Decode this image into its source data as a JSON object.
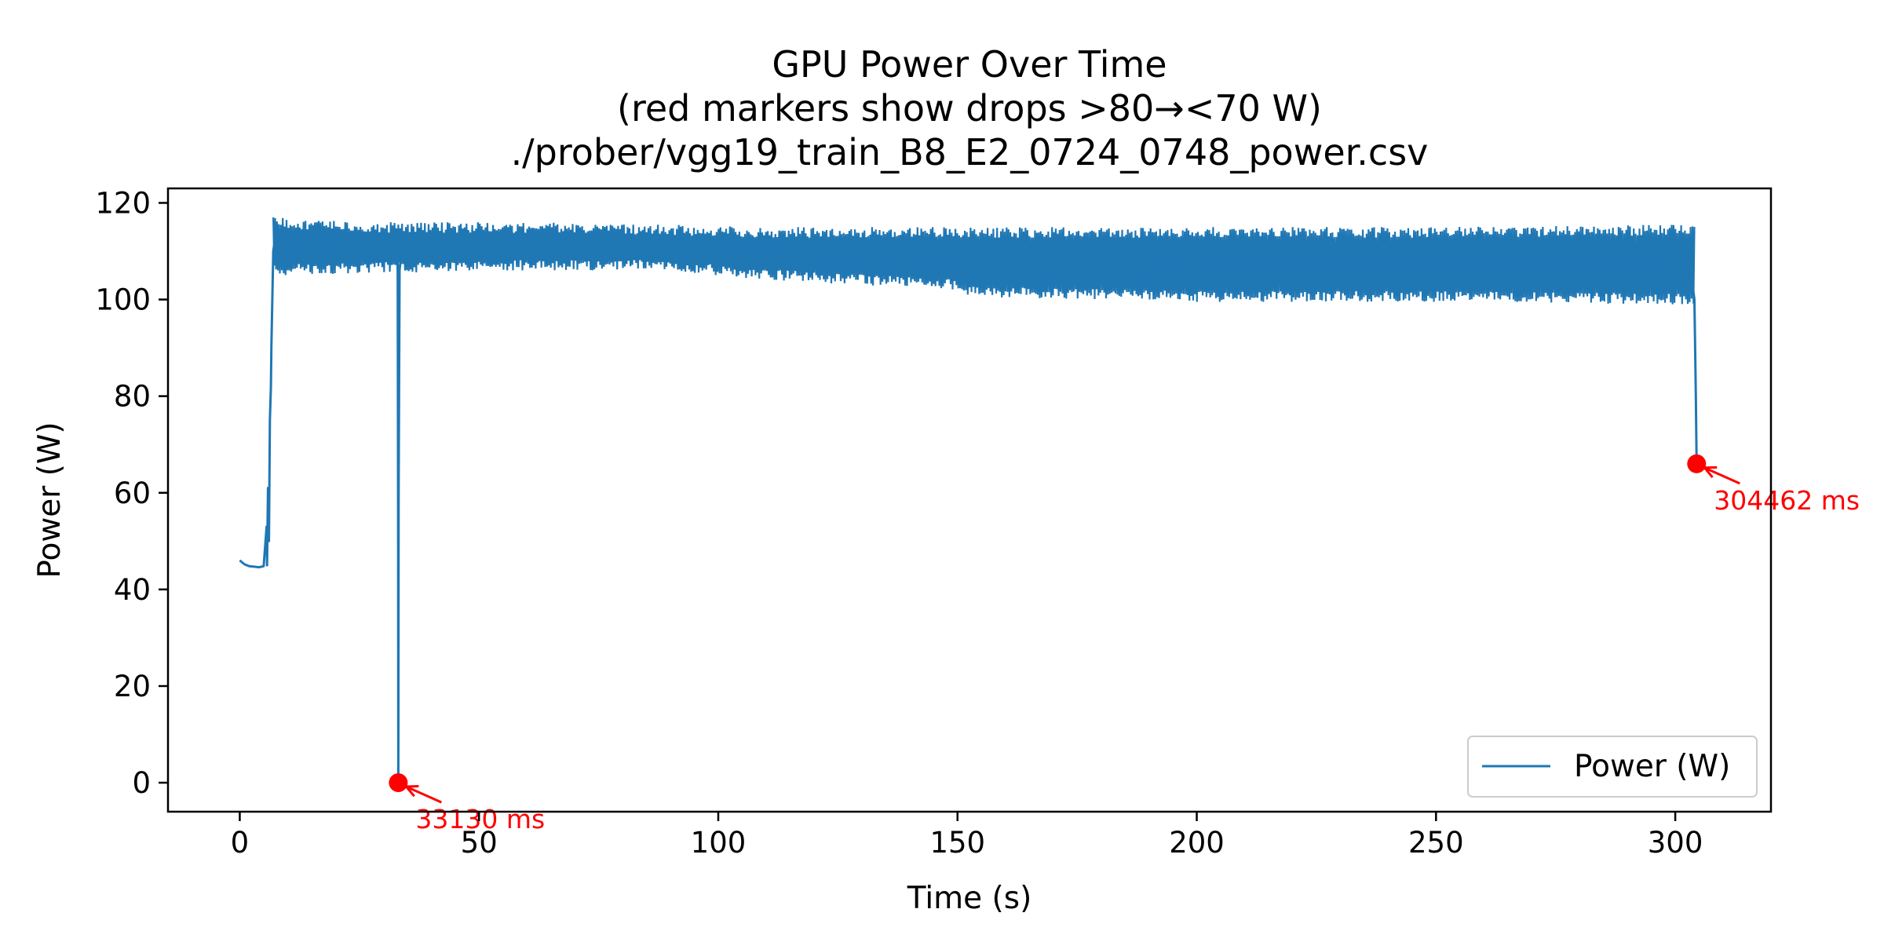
{
  "chart_data": {
    "type": "line",
    "title_lines": [
      "GPU Power Over Time",
      "(red markers show drops >80→<70 W)",
      "./prober/vgg19_train_B8_E2_0724_0748_power.csv"
    ],
    "xlabel": "Time (s)",
    "ylabel": "Power (W)",
    "xlim": [
      -15,
      320
    ],
    "ylim": [
      -6,
      123
    ],
    "xticks": [
      0,
      50,
      100,
      150,
      200,
      250,
      300
    ],
    "yticks": [
      0,
      20,
      40,
      60,
      80,
      100,
      120
    ],
    "grid": false,
    "legend_position": "lower-right",
    "series": [
      {
        "name": "Power (W)",
        "color": "#1f77b4",
        "x": [
          0,
          1,
          2,
          3,
          4,
          5,
          5.6,
          5.7,
          5.9,
          6.1,
          6.3,
          6.5,
          6.6,
          6.8,
          7.0,
          7.3,
          7.6,
          8.0,
          33.0,
          33.1,
          33.13,
          33.2,
          33.4,
          33.8,
          100,
          150,
          152,
          155,
          200,
          250,
          300,
          303.5,
          304.0,
          304.3,
          304.462
        ],
        "y": [
          46,
          45.2,
          44.8,
          44.7,
          44.6,
          44.8,
          53,
          45,
          61,
          50,
          75,
          82,
          90,
          100,
          110,
          112,
          108,
          111,
          108,
          50,
          0,
          60,
          106,
          110,
          110,
          107,
          104,
          105,
          106,
          106,
          106,
          104,
          100,
          80,
          66
        ]
      }
    ],
    "envelope": {
      "x": [
        7,
        30,
        60,
        90,
        110,
        130,
        150,
        152,
        200,
        250,
        300,
        304
      ],
      "upper": [
        117,
        116,
        116,
        115.5,
        115,
        115,
        115,
        115,
        115,
        115,
        115.5,
        116
      ],
      "lower": [
        105,
        105.5,
        106,
        106,
        104,
        103,
        102,
        100.5,
        99.5,
        99.5,
        99,
        99
      ]
    },
    "markers": [
      {
        "x": 33.13,
        "y": 0,
        "label": "33130 ms"
      },
      {
        "x": 304.462,
        "y": 66,
        "label": "304462 ms"
      }
    ],
    "marker_color": "#ff0000"
  }
}
